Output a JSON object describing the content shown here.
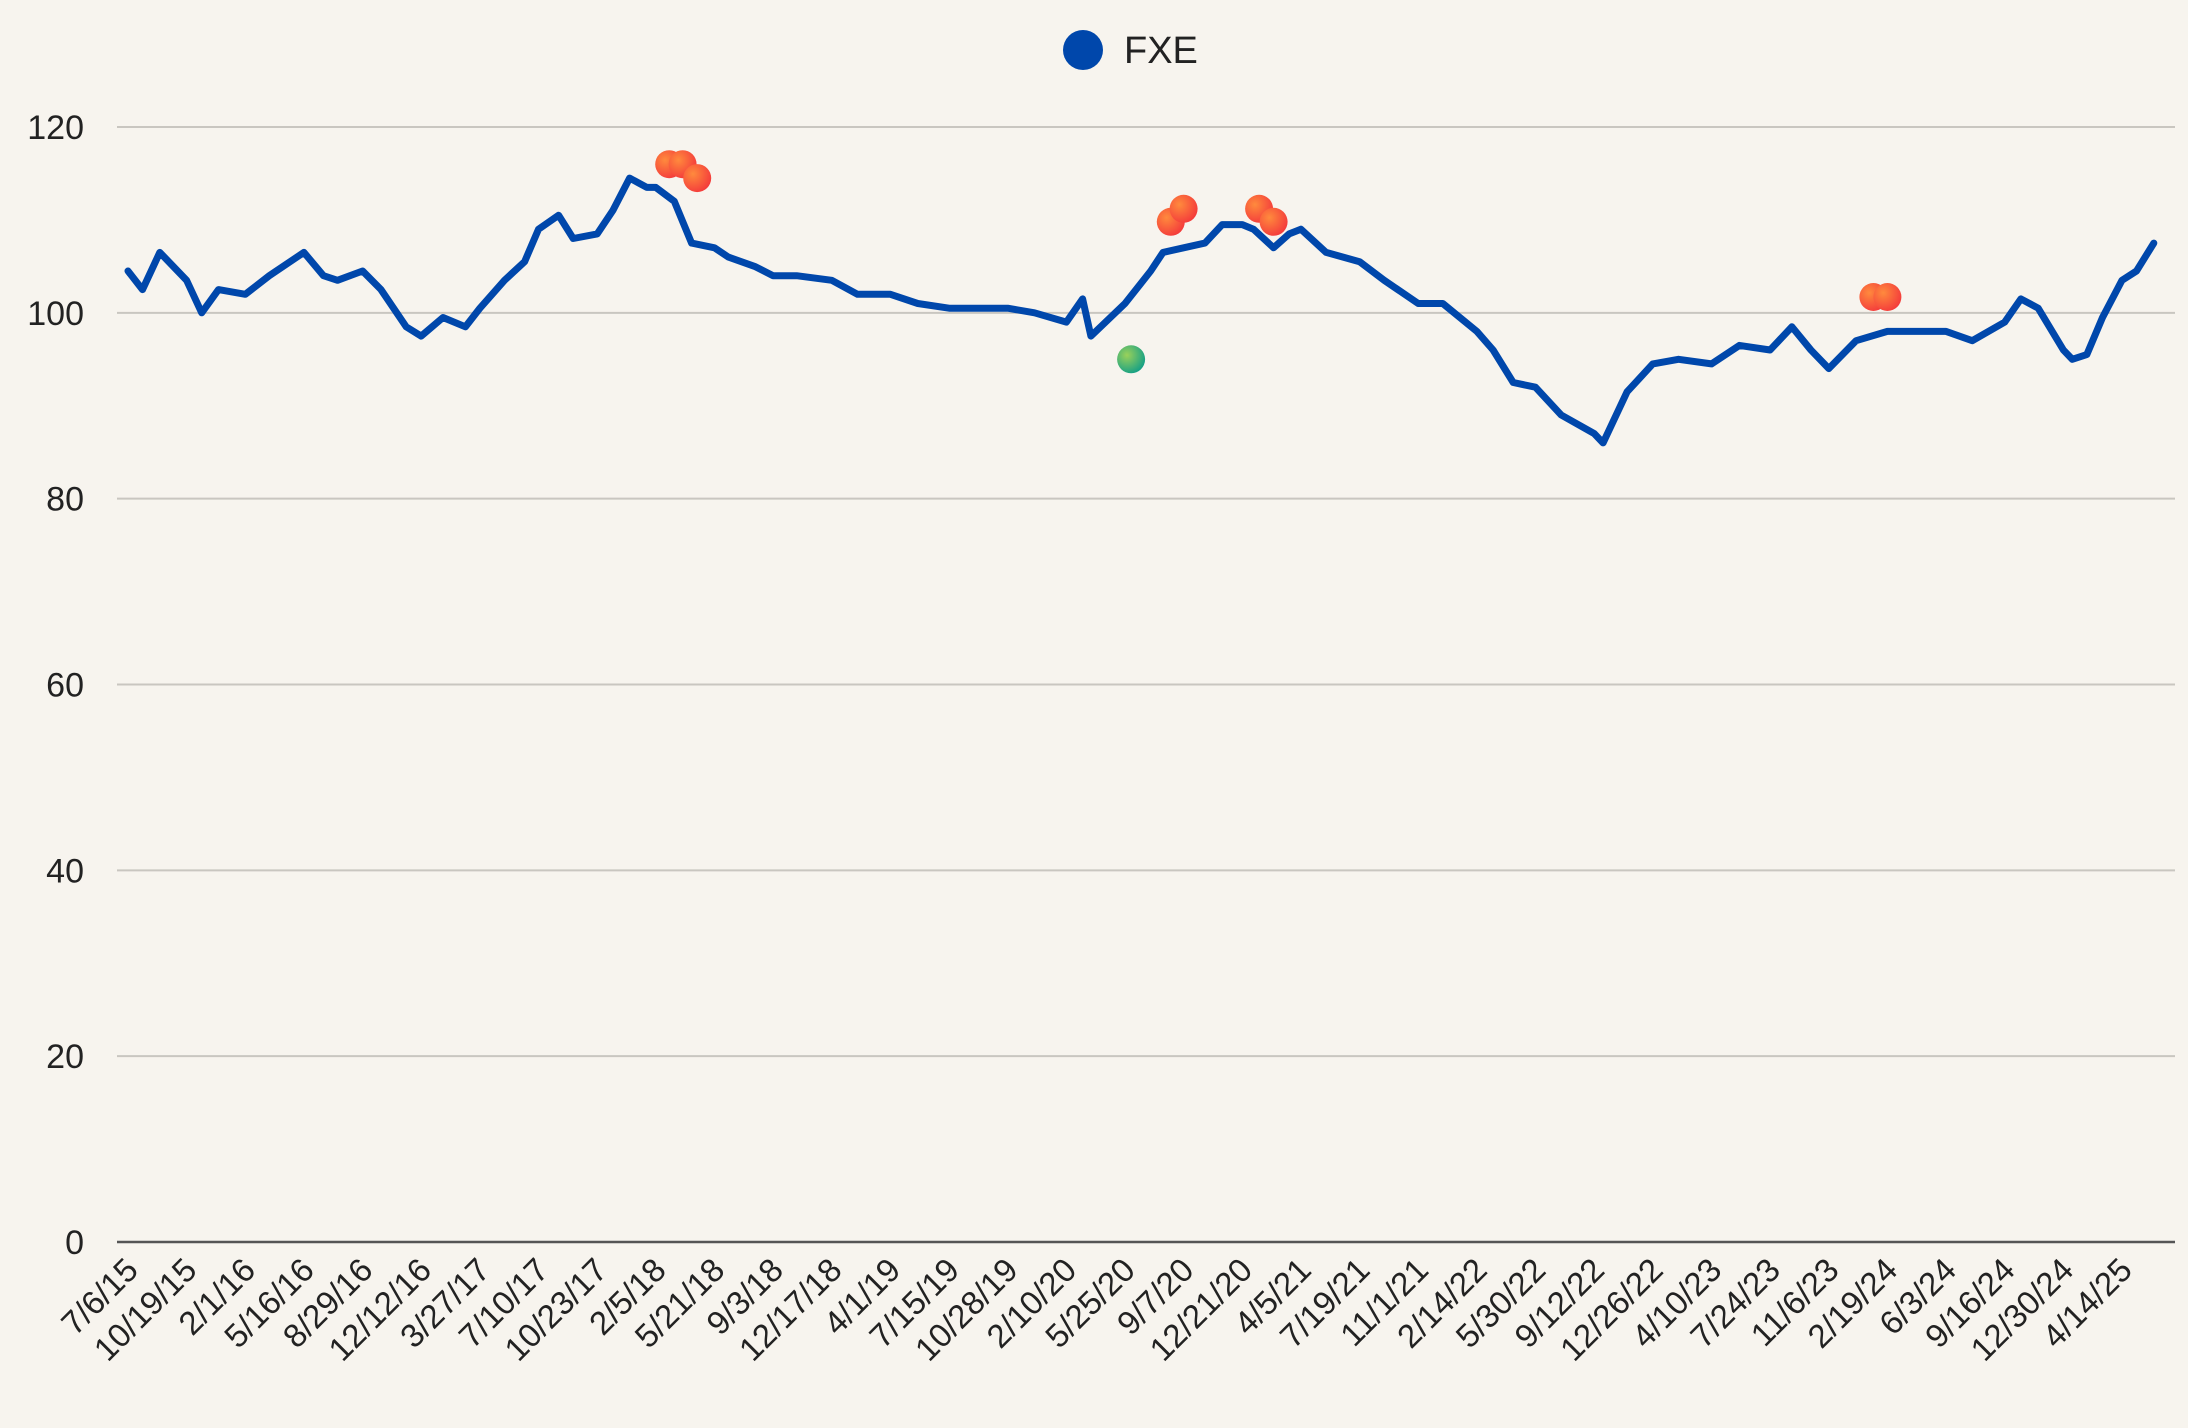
{
  "chart_data": {
    "type": "line",
    "legend": {
      "position": "top-center",
      "entries": [
        {
          "label": "FXE",
          "color": "#0047ab"
        }
      ]
    },
    "grid": true,
    "ylim": [
      0,
      120
    ],
    "y_ticks": [
      0,
      20,
      40,
      60,
      80,
      100,
      120
    ],
    "x_ticks": [
      "7/6/15",
      "10/19/15",
      "2/1/16",
      "5/16/16",
      "8/29/16",
      "12/12/16",
      "3/27/17",
      "7/10/17",
      "10/23/17",
      "2/5/18",
      "5/21/18",
      "9/3/18",
      "12/17/18",
      "4/1/19",
      "7/15/19",
      "10/28/19",
      "2/10/20",
      "5/25/20",
      "9/7/20",
      "12/21/20",
      "4/5/21",
      "7/19/21",
      "11/1/21",
      "2/14/22",
      "5/30/22",
      "9/12/22",
      "12/26/22",
      "4/10/23",
      "7/24/23",
      "11/6/23",
      "2/19/24",
      "6/3/24",
      "9/16/24",
      "12/30/24",
      "4/14/25"
    ],
    "series": [
      {
        "name": "FXE",
        "color": "#0047ab",
        "x": [
          "7/6/15",
          "8/1/15",
          "9/1/15",
          "10/19/15",
          "11/15/15",
          "12/15/15",
          "2/1/16",
          "3/15/16",
          "5/16/16",
          "6/20/16",
          "7/15/16",
          "8/29/16",
          "10/1/16",
          "11/15/16",
          "12/12/16",
          "1/20/17",
          "3/1/17",
          "3/27/17",
          "5/10/17",
          "6/15/17",
          "7/10/17",
          "8/15/17",
          "9/10/17",
          "10/23/17",
          "11/20/17",
          "12/20/17",
          "1/20/18",
          "2/5/18",
          "3/10/18",
          "4/10/18",
          "5/21/18",
          "6/15/18",
          "8/1/18",
          "9/3/18",
          "10/15/18",
          "12/17/18",
          "2/1/19",
          "4/1/19",
          "5/20/19",
          "7/15/19",
          "9/1/19",
          "10/28/19",
          "12/15/19",
          "2/10/20",
          "3/10/20",
          "3/25/20",
          "5/25/20",
          "7/10/20",
          "8/1/20",
          "9/7/20",
          "10/15/20",
          "11/15/20",
          "12/21/20",
          "1/10/21",
          "2/15/21",
          "3/15/21",
          "4/5/21",
          "5/20/21",
          "7/19/21",
          "9/1/21",
          "11/1/21",
          "12/15/21",
          "2/14/22",
          "3/15/22",
          "4/20/22",
          "5/30/22",
          "7/15/22",
          "9/12/22",
          "9/28/22",
          "11/10/22",
          "12/26/22",
          "2/10/23",
          "4/10/23",
          "5/30/23",
          "7/24/23",
          "9/1/23",
          "10/5/23",
          "11/6/23",
          "12/25/23",
          "2/19/24",
          "4/15/24",
          "6/3/24",
          "7/20/24",
          "9/16/24",
          "10/15/24",
          "11/15/24",
          "12/30/24",
          "1/15/25",
          "2/10/25",
          "3/10/25",
          "4/14/25",
          "5/10/25",
          "6/10/25"
        ],
        "values": [
          104.5,
          102.5,
          106.5,
          103.5,
          100,
          102.5,
          102,
          104,
          106.5,
          104,
          103.5,
          104.5,
          102.5,
          98.5,
          97.5,
          99.5,
          98.5,
          100.5,
          103.5,
          105.5,
          109,
          110.5,
          108,
          108.5,
          111,
          114.5,
          113.5,
          113.5,
          112,
          107.5,
          107,
          106,
          105,
          104,
          104,
          103.5,
          102,
          102,
          101,
          100.5,
          100.5,
          100.5,
          100,
          99,
          101.5,
          97.5,
          101,
          104.5,
          106.5,
          107,
          107.5,
          109.5,
          109.5,
          109,
          107,
          108.5,
          109,
          106.5,
          105.5,
          103.5,
          101,
          101,
          98,
          96,
          92.5,
          92,
          89,
          87,
          86,
          91.5,
          94.5,
          95,
          94.5,
          96.5,
          96,
          98.5,
          96,
          94,
          97,
          98,
          98,
          98,
          97,
          99,
          101.5,
          100.5,
          96,
          95,
          95.5,
          99.5,
          103.5,
          104.5,
          107.5
        ]
      }
    ],
    "highlights": [
      {
        "x": "3/1/18",
        "value": 116,
        "kind": "high",
        "color": "#ff5a3c"
      },
      {
        "x": "3/25/18",
        "value": 116,
        "kind": "high",
        "color": "#ff5a3c"
      },
      {
        "x": "4/20/18",
        "value": 114.5,
        "kind": "high",
        "color": "#ff5a3c"
      },
      {
        "x": "8/15/20",
        "value": 109.8,
        "kind": "high",
        "color": "#ff5a3c"
      },
      {
        "x": "9/7/20",
        "value": 111.2,
        "kind": "high",
        "color": "#ff5a3c"
      },
      {
        "x": "1/20/21",
        "value": 111.2,
        "kind": "high",
        "color": "#ff5a3c"
      },
      {
        "x": "2/15/21",
        "value": 109.8,
        "kind": "high",
        "color": "#ff5a3c"
      },
      {
        "x": "1/25/24",
        "value": 101.7,
        "kind": "high",
        "color": "#ff5a3c"
      },
      {
        "x": "2/19/24",
        "value": 101.7,
        "kind": "high",
        "color": "#ff5a3c"
      },
      {
        "x": "6/5/20",
        "value": 95,
        "kind": "low",
        "color": "#34b360"
      }
    ]
  }
}
